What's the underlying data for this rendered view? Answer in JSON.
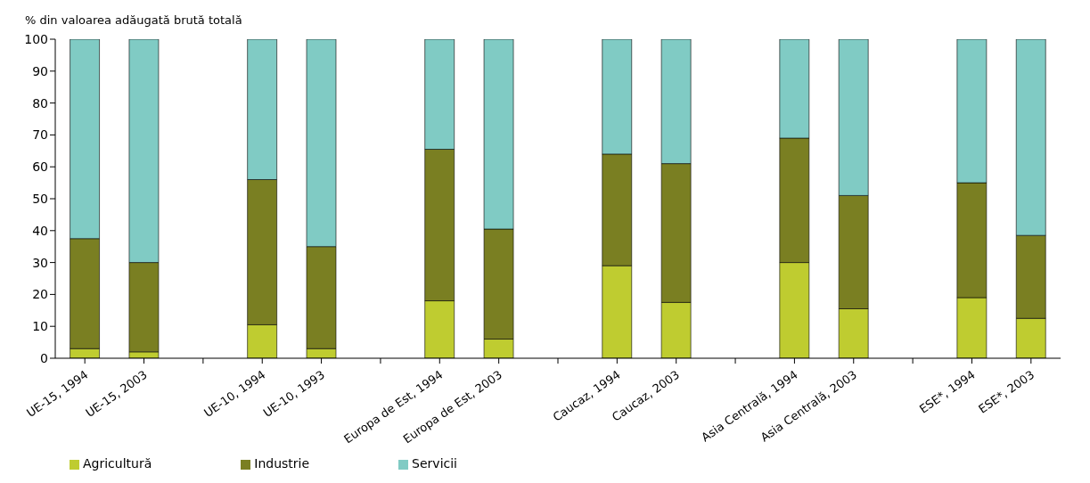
{
  "chart_data": {
    "type": "bar",
    "stacked": true,
    "ylabel": "% din valoarea adăugată brută totală",
    "categories": [
      "UE-15, 1994",
      "UE-15, 2003",
      null,
      "UE-10, 1994",
      "UE-10, 1993",
      null,
      "Europa de Est, 1994",
      "Europa de Est, 2003",
      null,
      "Caucaz, 1994",
      "Caucaz, 2003",
      null,
      "Asia Centrală, 1994",
      "Asia Centrală, 2003",
      null,
      "ESE*, 1994",
      "ESE*, 2003"
    ],
    "series": [
      {
        "name": "Agricultură",
        "color": "#bfcc30",
        "values": [
          3,
          2,
          null,
          10.5,
          3,
          null,
          18,
          6,
          null,
          29,
          17.5,
          null,
          30,
          15.5,
          null,
          19,
          12.5
        ]
      },
      {
        "name": "Industrie",
        "color": "#7a7f22",
        "values": [
          34.5,
          28,
          null,
          45.5,
          32,
          null,
          47.5,
          34.5,
          null,
          35,
          43.5,
          null,
          39,
          35.5,
          null,
          36,
          26
        ]
      },
      {
        "name": "Servicii",
        "color": "#80cbc4",
        "values": [
          62.5,
          70,
          null,
          44,
          65,
          null,
          34.5,
          59.5,
          null,
          36,
          39,
          null,
          31,
          49,
          null,
          45,
          61.5
        ]
      }
    ],
    "ylim": [
      0,
      100
    ],
    "yticks": [
      0,
      10,
      20,
      30,
      40,
      50,
      60,
      70,
      80,
      90,
      100
    ],
    "legend": "bottom left"
  }
}
